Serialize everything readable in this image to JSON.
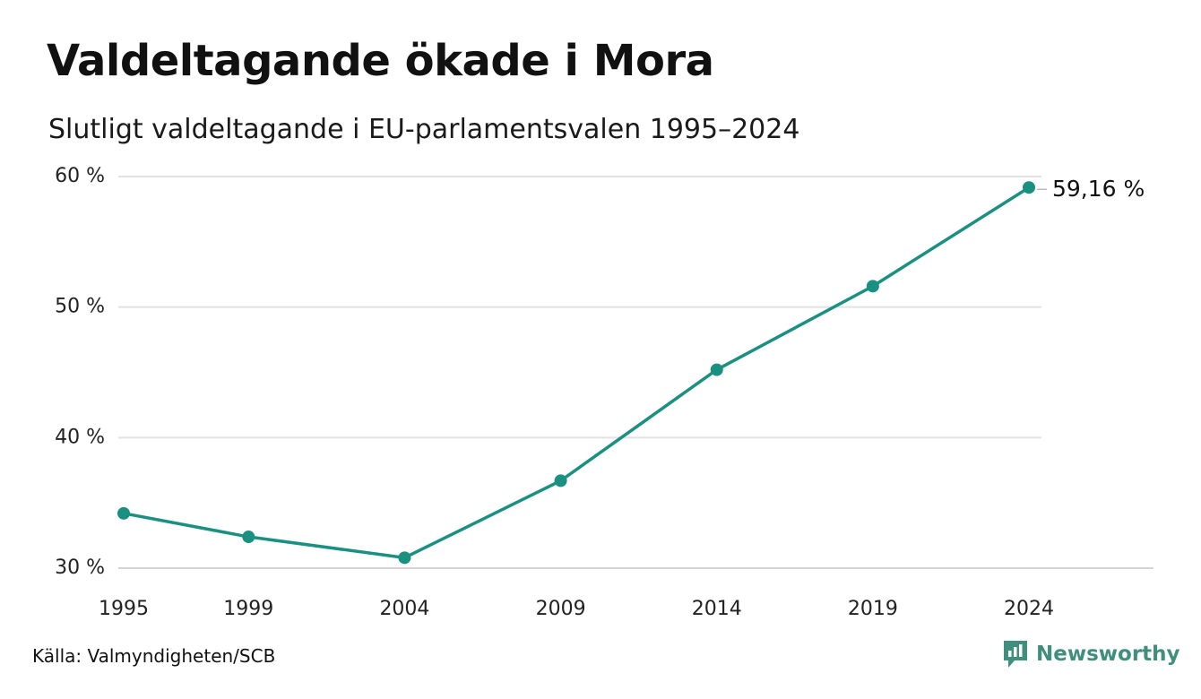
{
  "chart_data": {
    "type": "line",
    "title": "Valdeltagande ökade i Mora",
    "subtitle": "Slutligt valdeltagande i EU-parlamentsvalen 1995–2024",
    "x": [
      1995,
      1999,
      2004,
      2009,
      2014,
      2019,
      2024
    ],
    "series": [
      {
        "values": [
          34.2,
          32.4,
          30.8,
          36.7,
          45.2,
          51.6,
          59.16
        ]
      }
    ],
    "x_tick_labels": [
      "1995",
      "1999",
      "2004",
      "2009",
      "2014",
      "2019",
      "2024"
    ],
    "y_ticks": [
      30,
      40,
      50,
      60
    ],
    "y_tick_labels": [
      "30 %",
      "40 %",
      "50 %",
      "60 %"
    ],
    "ylim": [
      30,
      60
    ],
    "grid": true,
    "end_label": "59,16 %",
    "line_color": "#1a9080",
    "source": "Källa: Valmyndigheten/SCB"
  },
  "brand": {
    "name": "Newsworthy",
    "icon": "newsworthy-logo-icon",
    "color": "#3f8e7e"
  }
}
